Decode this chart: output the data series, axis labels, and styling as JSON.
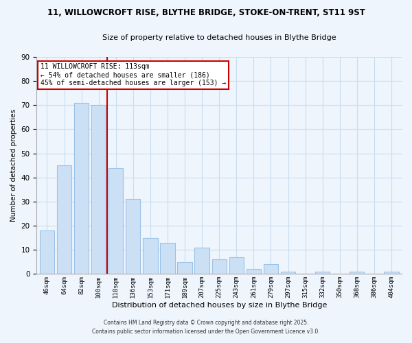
{
  "title_line1": "11, WILLOWCROFT RISE, BLYTHE BRIDGE, STOKE-ON-TRENT, ST11 9ST",
  "title_line2": "Size of property relative to detached houses in Blythe Bridge",
  "xlabel": "Distribution of detached houses by size in Blythe Bridge",
  "ylabel": "Number of detached properties",
  "bar_labels": [
    "46sqm",
    "64sqm",
    "82sqm",
    "100sqm",
    "118sqm",
    "136sqm",
    "153sqm",
    "171sqm",
    "189sqm",
    "207sqm",
    "225sqm",
    "243sqm",
    "261sqm",
    "279sqm",
    "297sqm",
    "315sqm",
    "332sqm",
    "350sqm",
    "368sqm",
    "386sqm",
    "404sqm"
  ],
  "bar_values": [
    18,
    45,
    71,
    70,
    44,
    31,
    15,
    13,
    5,
    11,
    6,
    7,
    2,
    4,
    1,
    0,
    1,
    0,
    1,
    0,
    1
  ],
  "bar_color": "#cce0f5",
  "bar_edge_color": "#99c2e8",
  "vline_color": "#cc0000",
  "ylim": [
    0,
    90
  ],
  "yticks": [
    0,
    10,
    20,
    30,
    40,
    50,
    60,
    70,
    80,
    90
  ],
  "annotation_title": "11 WILLOWCROFT RISE: 113sqm",
  "annotation_line1": "← 54% of detached houses are smaller (186)",
  "annotation_line2": "45% of semi-detached houses are larger (153) →",
  "annotation_box_color": "#ffffff",
  "annotation_box_edge": "#cc0000",
  "grid_color": "#c8ddf0",
  "background_color": "#eef5fd",
  "footnote1": "Contains HM Land Registry data © Crown copyright and database right 2025.",
  "footnote2": "Contains public sector information licensed under the Open Government Licence v3.0."
}
